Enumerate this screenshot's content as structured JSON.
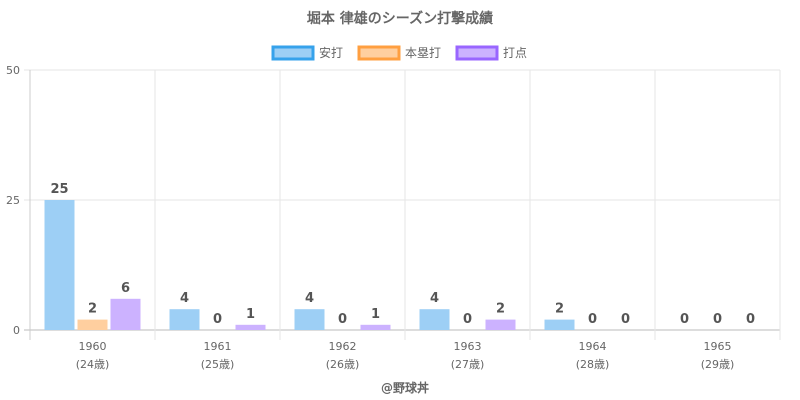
{
  "chart_data": {
    "type": "bar",
    "title": "堀本 律雄のシーズン打撃成績",
    "categories": [
      "1960",
      "1961",
      "1962",
      "1963",
      "1964",
      "1965"
    ],
    "ages": [
      "(24歳)",
      "(25歳)",
      "(26歳)",
      "(27歳)",
      "(28歳)",
      "(29歳)"
    ],
    "series": [
      {
        "name": "安打",
        "values": [
          25,
          4,
          4,
          4,
          2,
          0
        ],
        "fill": "#9dcff5",
        "stroke": "#36a2eb"
      },
      {
        "name": "本塁打",
        "values": [
          2,
          0,
          0,
          0,
          0,
          0
        ],
        "fill": "#ffcf9f",
        "stroke": "#ff9f40"
      },
      {
        "name": "打点",
        "values": [
          6,
          1,
          1,
          2,
          0,
          0
        ],
        "fill": "#ccb2ff",
        "stroke": "#9966ff"
      }
    ],
    "ylim": [
      0,
      50
    ],
    "yticks": [
      0,
      25,
      50
    ],
    "xlabel": "",
    "ylabel": "",
    "legend": "top",
    "grid": true
  },
  "credit": "@野球丼"
}
